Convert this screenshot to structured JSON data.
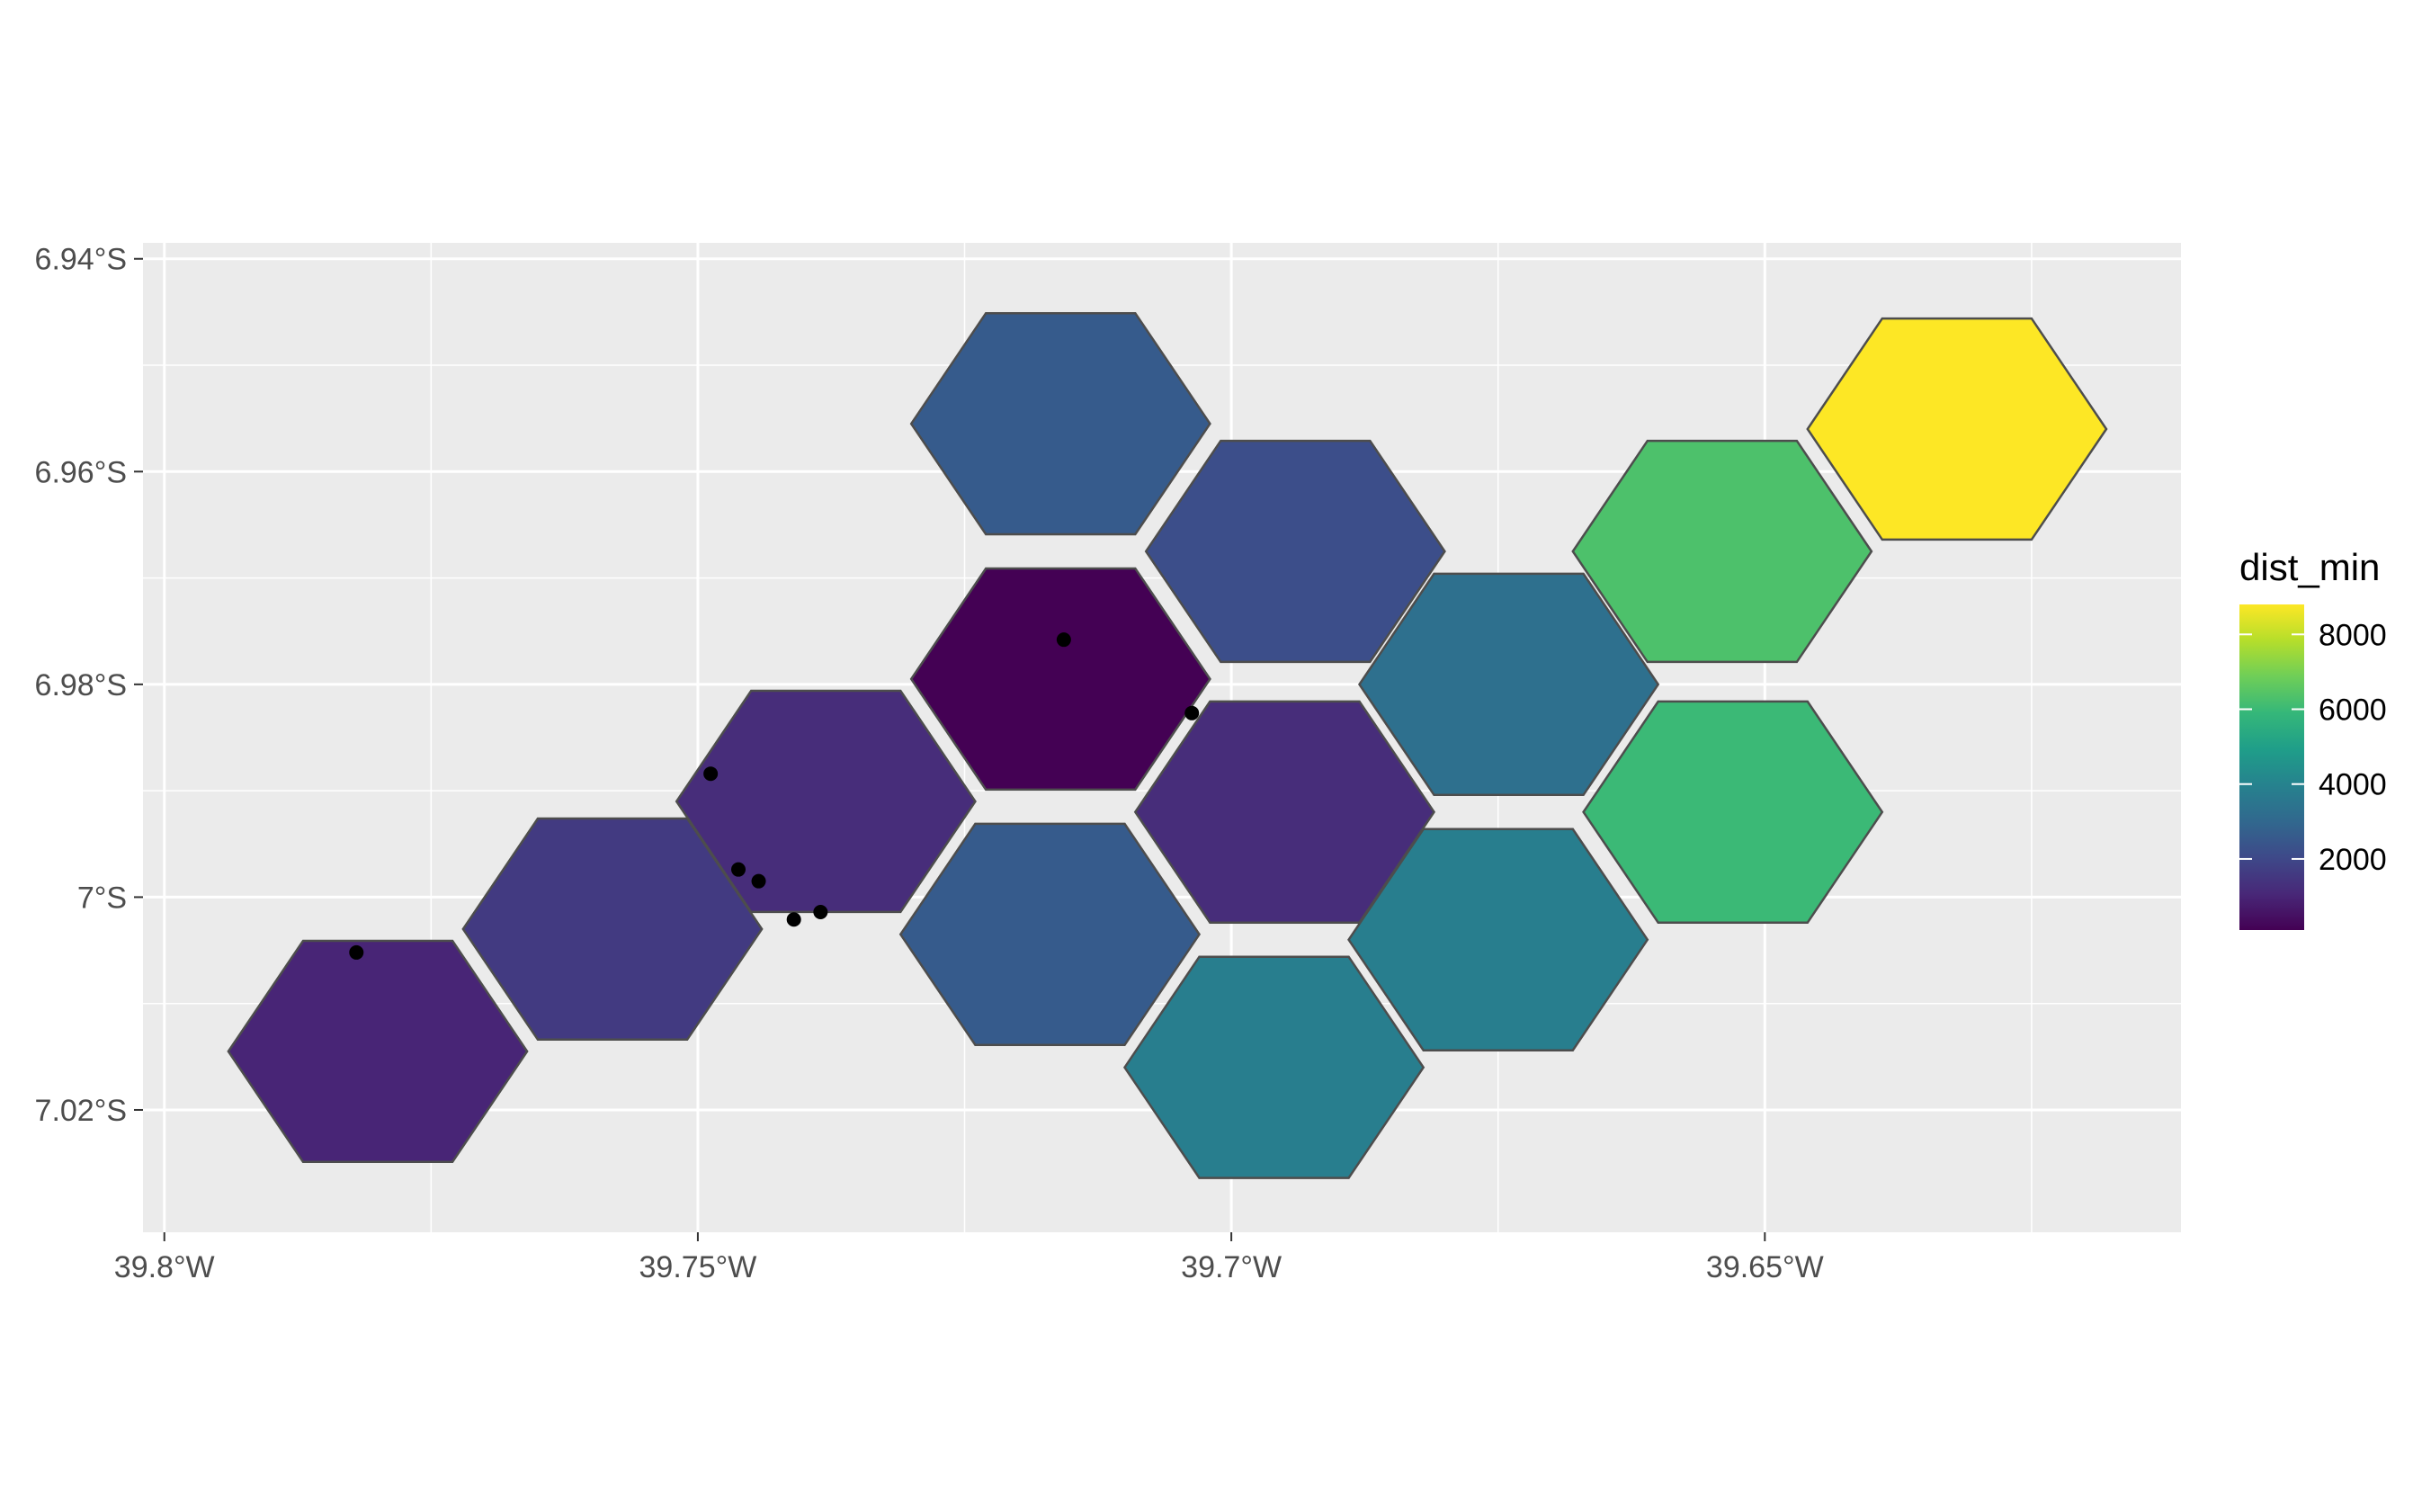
{
  "chart_data": {
    "type": "heatmap",
    "title": "",
    "xlabel": "",
    "ylabel": "",
    "grid": true,
    "panel_background": "#ebebeb",
    "gridline_color": "#ffffff",
    "hex_outline_color": "#4d4d4d",
    "point_color": "#000000",
    "xlim": [
      -39.802,
      -39.611
    ],
    "ylim": [
      -7.0315,
      -6.9385
    ],
    "x_ticks": [
      {
        "value": -39.8,
        "label": "39.8°W"
      },
      {
        "value": -39.75,
        "label": "39.75°W"
      },
      {
        "value": -39.7,
        "label": "39.7°W"
      },
      {
        "value": -39.65,
        "label": "39.65°W"
      }
    ],
    "y_ticks": [
      {
        "value": -6.94,
        "label": "6.94°S"
      },
      {
        "value": -6.96,
        "label": "6.96°S"
      },
      {
        "value": -6.98,
        "label": "6.98°S"
      },
      {
        "value": -7.0,
        "label": "7°S"
      },
      {
        "value": -7.02,
        "label": "7.02°S"
      }
    ],
    "hexagons": [
      {
        "lon": -39.78,
        "lat": -7.0145,
        "dist_min": 1000
      },
      {
        "lon": -39.758,
        "lat": -7.003,
        "dist_min": 1600
      },
      {
        "lon": -39.738,
        "lat": -6.991,
        "dist_min": 1200
      },
      {
        "lon": -39.716,
        "lat": -6.9795,
        "dist_min": 100
      },
      {
        "lon": -39.716,
        "lat": -6.9555,
        "dist_min": 2600
      },
      {
        "lon": -39.694,
        "lat": -6.9675,
        "dist_min": 2200
      },
      {
        "lon": -39.695,
        "lat": -6.992,
        "dist_min": 1200
      },
      {
        "lon": -39.717,
        "lat": -7.0035,
        "dist_min": 2600
      },
      {
        "lon": -39.696,
        "lat": -7.016,
        "dist_min": 3800
      },
      {
        "lon": -39.674,
        "lat": -6.98,
        "dist_min": 3300
      },
      {
        "lon": -39.675,
        "lat": -7.004,
        "dist_min": 3800
      },
      {
        "lon": -39.654,
        "lat": -6.9675,
        "dist_min": 6300
      },
      {
        "lon": -39.653,
        "lat": -6.992,
        "dist_min": 6000
      },
      {
        "lon": -39.632,
        "lat": -6.956,
        "dist_min": 8800
      }
    ],
    "points": [
      {
        "lon": -39.782,
        "lat": -7.0052
      },
      {
        "lon": -39.7488,
        "lat": -6.9884
      },
      {
        "lon": -39.7462,
        "lat": -6.9974
      },
      {
        "lon": -39.7443,
        "lat": -6.9985
      },
      {
        "lon": -39.741,
        "lat": -7.0021
      },
      {
        "lon": -39.7385,
        "lat": -7.0014
      },
      {
        "lon": -39.7157,
        "lat": -6.9758
      },
      {
        "lon": -39.7037,
        "lat": -6.9827
      }
    ],
    "legend": {
      "title": "dist_min",
      "placement": "right",
      "min": 100,
      "max": 8800,
      "breaks": [
        {
          "value": 2000,
          "label": "2000"
        },
        {
          "value": 4000,
          "label": "4000"
        },
        {
          "value": 6000,
          "label": "6000"
        },
        {
          "value": 8000,
          "label": "8000"
        }
      ],
      "colors": [
        "#440154",
        "#482878",
        "#3e4989",
        "#31688e",
        "#26828e",
        "#1f9e89",
        "#35b779",
        "#6ece58",
        "#b5de2b",
        "#fde725"
      ]
    }
  }
}
